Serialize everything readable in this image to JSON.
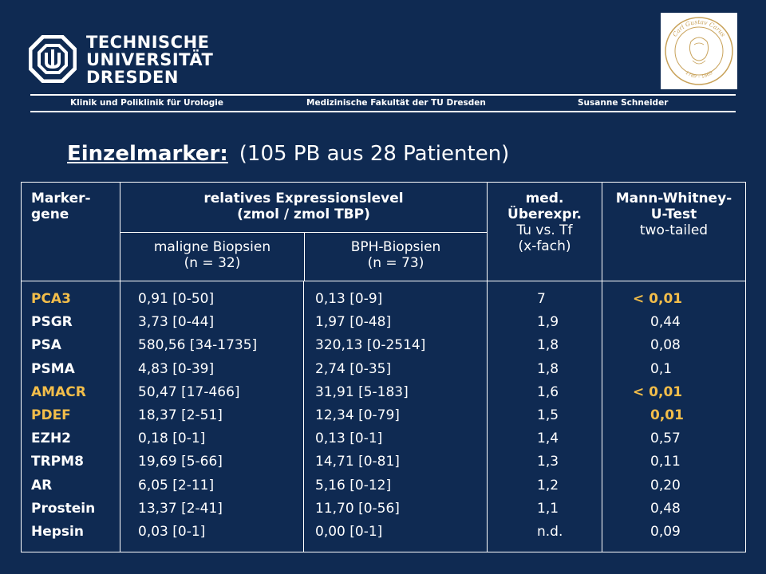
{
  "header": {
    "logo_lines": [
      "TECHNISCHE",
      "UNIVERSITÄT",
      "DRESDEN"
    ],
    "strip": {
      "left": "Klinik und Poliklinik für Urologie",
      "center": "Medizinische Fakultät der TU Dresden",
      "right": "Susanne Schneider"
    },
    "seal_text_top": "Carl Gustav Carus",
    "seal_text_bottom": "1789 – 1869"
  },
  "title": {
    "bold": "Einzelmarker:",
    "rest": "(105 PB aus 28 Patienten)"
  },
  "table": {
    "headers": {
      "marker": [
        "Marker-",
        "gene"
      ],
      "expression": [
        "relatives Expressionslevel",
        "(zmol / zmol TBP)"
      ],
      "maligne": [
        "maligne Biopsien",
        "(n = 32)"
      ],
      "bph": [
        "BPH-Biopsien",
        "(n = 73)"
      ],
      "med_bold": [
        "med.",
        "Überexpr."
      ],
      "med_plain": [
        "Tu vs. Tf",
        "(x-fach)"
      ],
      "mw_bold": [
        "Mann-Whitney-",
        "U-Test"
      ],
      "mw_plain": "two-tailed"
    },
    "rows": [
      {
        "gene": "PCA3",
        "maligne": "0,91 [0-50]",
        "bph": "0,13 [0-9]",
        "fold": "7",
        "p": "< 0,01",
        "highlight": true
      },
      {
        "gene": "PSGR",
        "maligne": "3,73 [0-44]",
        "bph": "1,97 [0-48]",
        "fold": "1,9",
        "p": "0,44",
        "highlight": false
      },
      {
        "gene": "PSA",
        "maligne": "580,56 [34-1735]",
        "bph": "320,13 [0-2514]",
        "fold": "1,8",
        "p": "0,08",
        "highlight": false
      },
      {
        "gene": "PSMA",
        "maligne": "4,83 [0-39]",
        "bph": "2,74 [0-35]",
        "fold": "1,8",
        "p": "0,1",
        "highlight": false
      },
      {
        "gene": "AMACR",
        "maligne": "50,47 [17-466]",
        "bph": "31,91 [5-183]",
        "fold": "1,6",
        "p": "< 0,01",
        "highlight": true
      },
      {
        "gene": "PDEF",
        "maligne": "18,37 [2-51]",
        "bph": "12,34 [0-79]",
        "fold": "1,5",
        "p": "0,01",
        "highlight": true
      },
      {
        "gene": "EZH2",
        "maligne": "0,18 [0-1]",
        "bph": "0,13 [0-1]",
        "fold": "1,4",
        "p": "0,57",
        "highlight": false
      },
      {
        "gene": "TRPM8",
        "maligne": "19,69 [5-66]",
        "bph": "14,71 [0-81]",
        "fold": "1,3",
        "p": "0,11",
        "highlight": false
      },
      {
        "gene": "AR",
        "maligne": "6,05 [2-11]",
        "bph": "5,16 [0-12]",
        "fold": "1,2",
        "p": "0,20",
        "highlight": false
      },
      {
        "gene": "Prostein",
        "maligne": "13,37 [2-41]",
        "bph": "11,70 [0-56]",
        "fold": "1,1",
        "p": "0,48",
        "highlight": false
      },
      {
        "gene": "Hepsin",
        "maligne": "0,03 [0-1]",
        "bph": "0,00 [0-1]",
        "fold": "n.d.",
        "p": "0,09",
        "highlight": false
      }
    ]
  },
  "colors": {
    "background": "#0f2a52",
    "text": "#ffffff",
    "highlight": "#f2bd4a"
  }
}
